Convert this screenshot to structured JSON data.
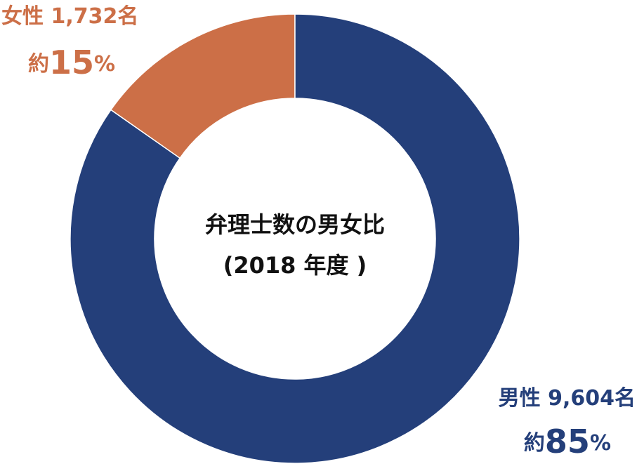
{
  "chart_data": {
    "type": "donut",
    "title": "弁理士数の男女比",
    "subtitle": "(2018 年度 )",
    "categories": [
      "男性",
      "女性"
    ],
    "values": [
      9604,
      1732
    ],
    "value_labels": [
      "9,604名",
      "1,732名"
    ],
    "percent_labels": [
      "約85%",
      "約15%"
    ],
    "colors": [
      "#243f7a",
      "#cc6f47"
    ]
  }
}
